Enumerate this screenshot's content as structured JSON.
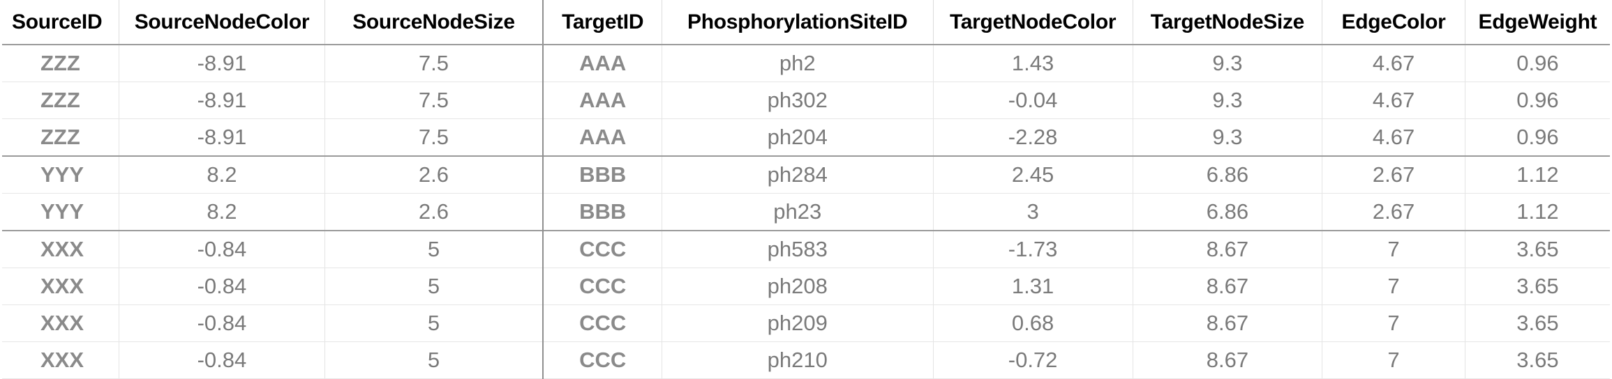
{
  "table": {
    "headers": [
      "SourceID",
      "SourceNodeColor",
      "SourceNodeSize",
      "TargetID",
      "PhosphorylationSiteID",
      "TargetNodeColor",
      "TargetNodeSize",
      "EdgeColor",
      "EdgeWeight"
    ],
    "rows": [
      [
        "ZZZ",
        "-8.91",
        "7.5",
        "AAA",
        "ph2",
        "1.43",
        "9.3",
        "4.67",
        "0.96"
      ],
      [
        "ZZZ",
        "-8.91",
        "7.5",
        "AAA",
        "ph302",
        "-0.04",
        "9.3",
        "4.67",
        "0.96"
      ],
      [
        "ZZZ",
        "-8.91",
        "7.5",
        "AAA",
        "ph204",
        "-2.28",
        "9.3",
        "4.67",
        "0.96"
      ],
      [
        "YYY",
        "8.2",
        "2.6",
        "BBB",
        "ph284",
        "2.45",
        "6.86",
        "2.67",
        "1.12"
      ],
      [
        "YYY",
        "8.2",
        "2.6",
        "BBB",
        "ph23",
        "3",
        "6.86",
        "2.67",
        "1.12"
      ],
      [
        "XXX",
        "-0.84",
        "5",
        "CCC",
        "ph583",
        "-1.73",
        "8.67",
        "7",
        "3.65"
      ],
      [
        "XXX",
        "-0.84",
        "5",
        "CCC",
        "ph208",
        "1.31",
        "8.67",
        "7",
        "3.65"
      ],
      [
        "XXX",
        "-0.84",
        "5",
        "CCC",
        "ph209",
        "0.68",
        "8.67",
        "7",
        "3.65"
      ],
      [
        "XXX",
        "-0.84",
        "5",
        "CCC",
        "ph210",
        "-0.72",
        "8.67",
        "7",
        "3.65"
      ]
    ]
  }
}
